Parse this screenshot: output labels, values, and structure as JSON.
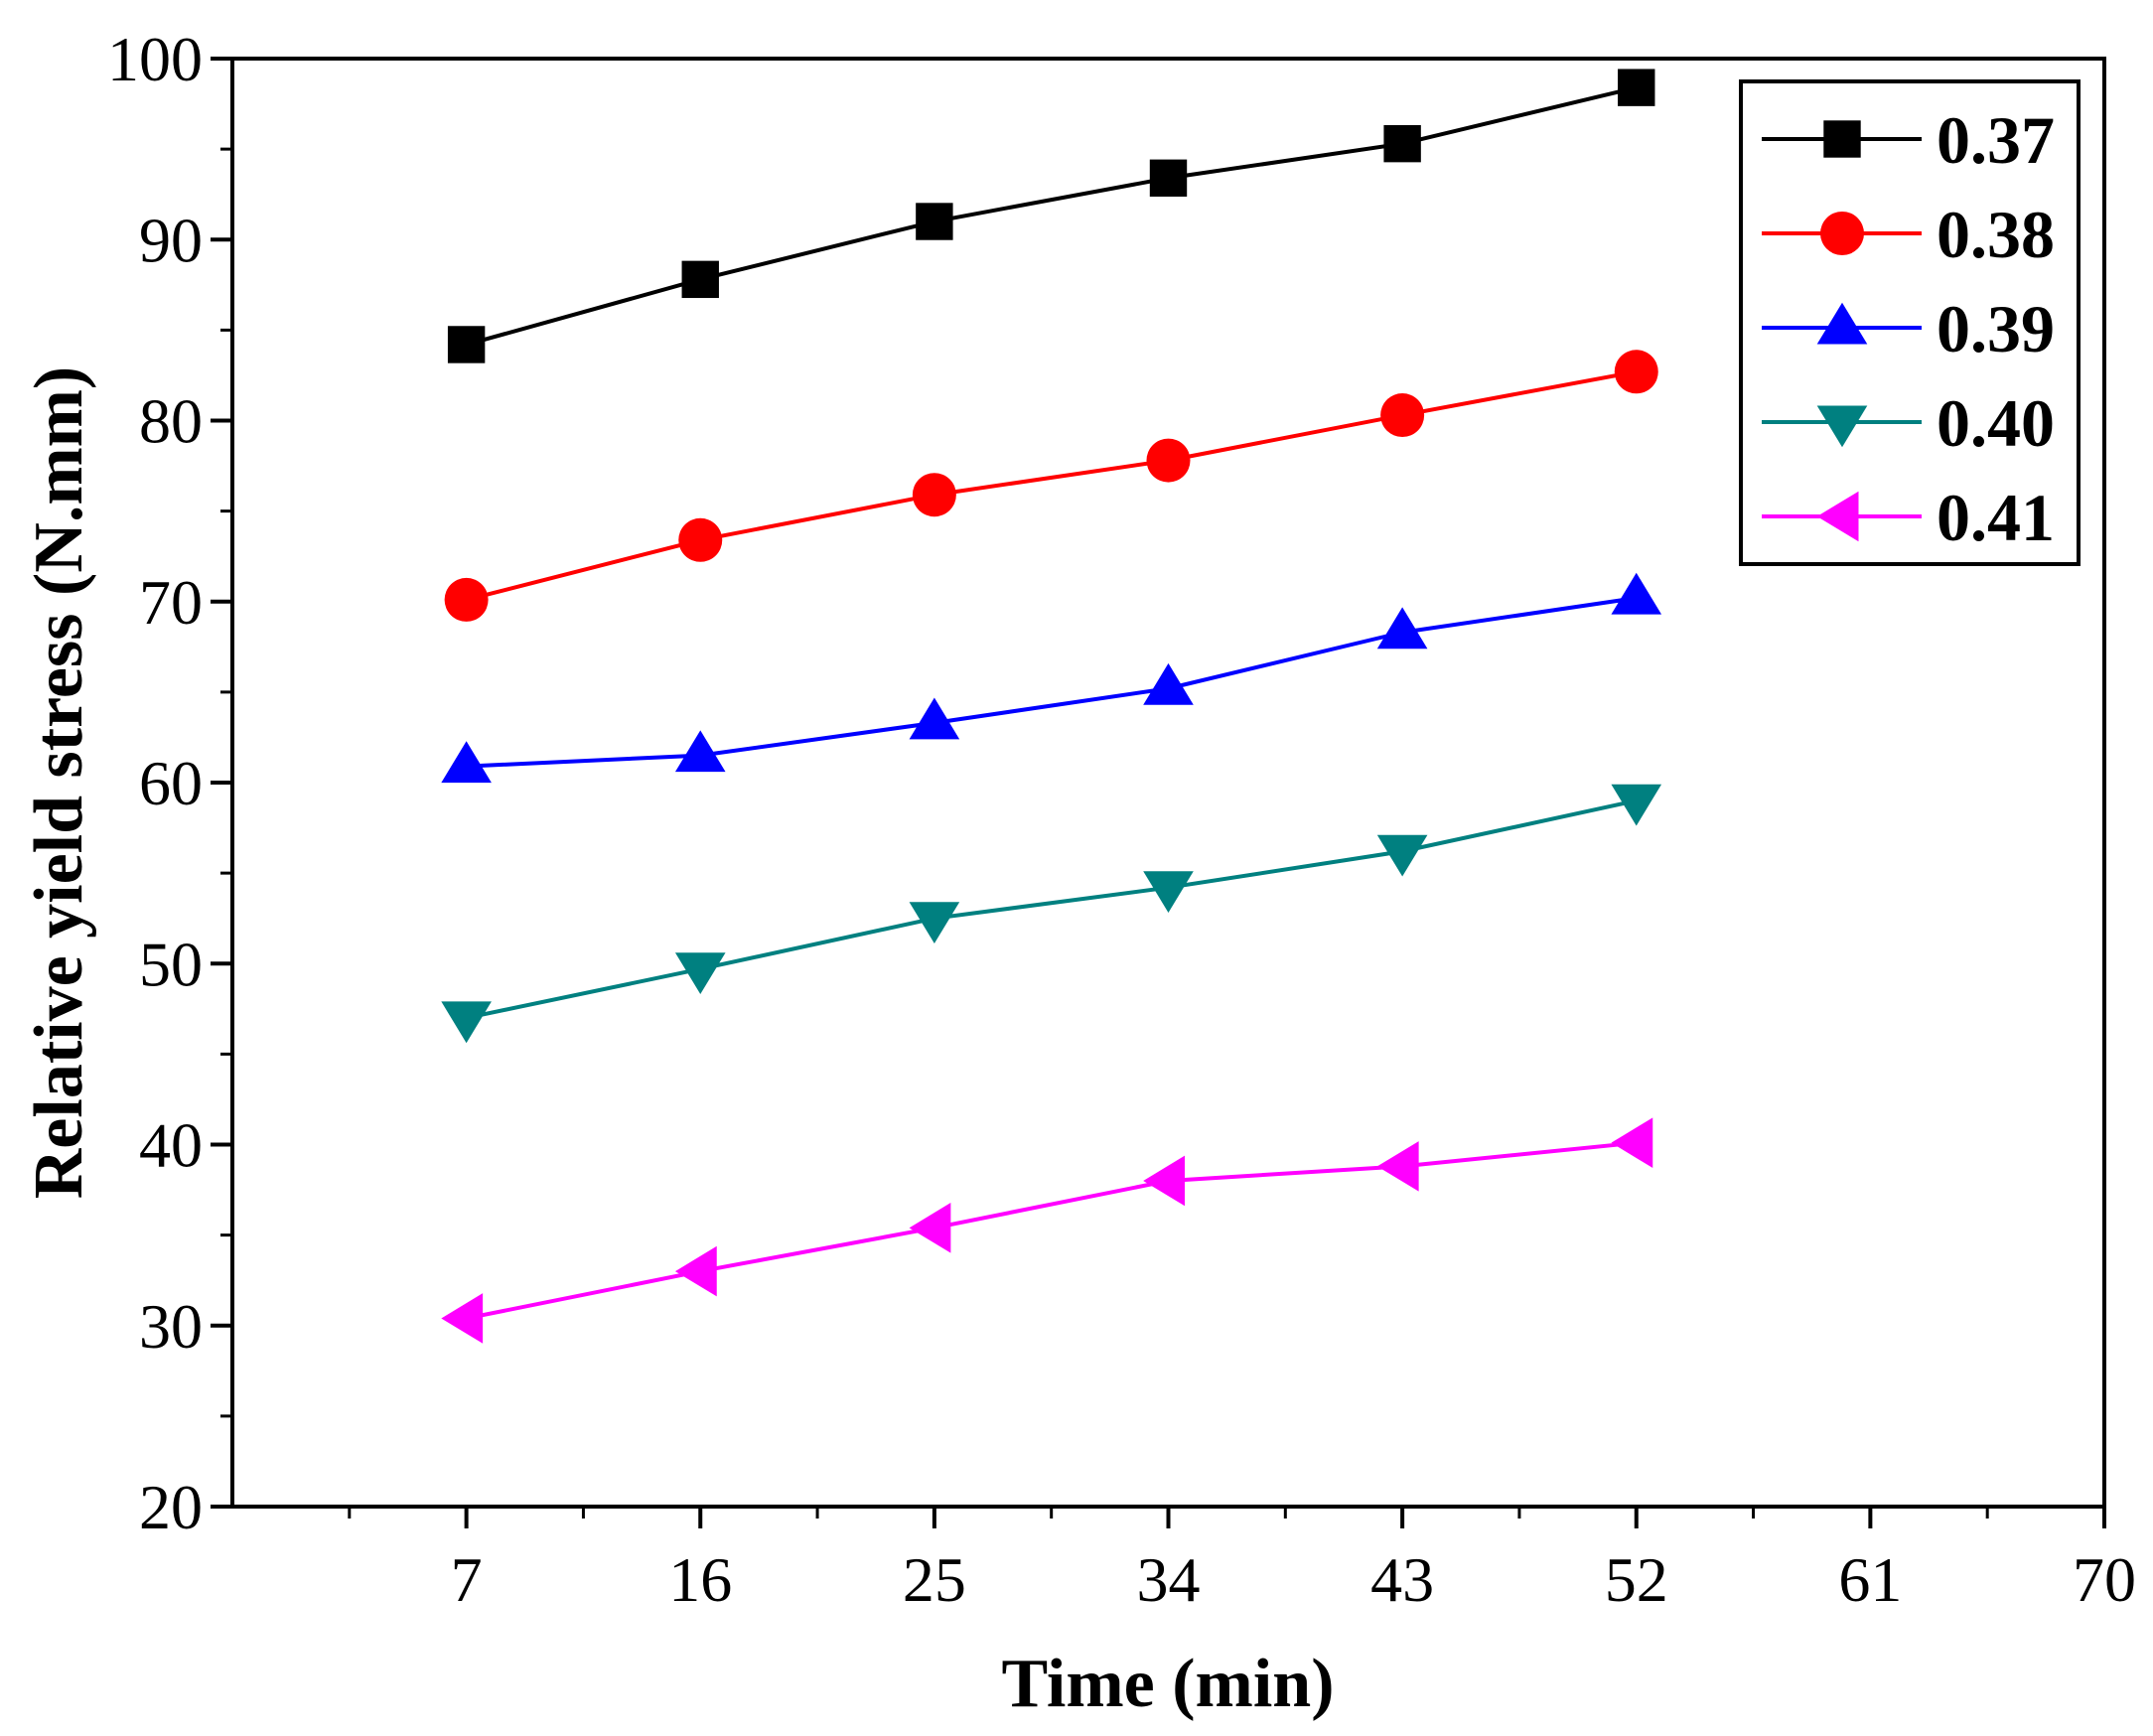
{
  "chart_data": {
    "type": "line",
    "title": "",
    "xlabel": "Time (min)",
    "ylabel": "Relative yield stress (N.mm)",
    "xlim": [
      -2,
      70
    ],
    "ylim": [
      20,
      100
    ],
    "xticks": [
      7,
      16,
      25,
      34,
      43,
      52,
      61,
      70
    ],
    "xticks_minor": [
      2.5,
      11.5,
      20.5,
      29.5,
      38.5,
      47.5,
      56.5,
      65.5
    ],
    "yticks": [
      20,
      30,
      40,
      50,
      60,
      70,
      80,
      90,
      100
    ],
    "yticks_minor": [
      25,
      35,
      45,
      55,
      65,
      75,
      85,
      95
    ],
    "xtick_labels": [
      "7",
      "16",
      "25",
      "34",
      "43",
      "52",
      "61",
      "70"
    ],
    "ytick_labels": [
      "20",
      "30",
      "40",
      "50",
      "60",
      "70",
      "80",
      "90",
      "100"
    ],
    "grid": false,
    "legend_position": "top-right",
    "x": [
      7,
      16,
      25,
      34,
      43,
      52
    ],
    "series": [
      {
        "name": "0.37",
        "color": "#000000",
        "marker": "square",
        "values": [
          84.2,
          87.8,
          91.0,
          93.4,
          95.3,
          98.4
        ]
      },
      {
        "name": "0.38",
        "color": "#ff0000",
        "marker": "circle",
        "values": [
          70.1,
          73.4,
          75.9,
          77.8,
          80.3,
          82.7
        ]
      },
      {
        "name": "0.39",
        "color": "#0000ff",
        "marker": "triangle-up",
        "values": [
          60.9,
          61.5,
          63.3,
          65.2,
          68.3,
          70.2
        ]
      },
      {
        "name": "0.40",
        "color": "#008080",
        "marker": "triangle-down",
        "values": [
          47.0,
          49.7,
          52.5,
          54.2,
          56.2,
          59.0
        ]
      },
      {
        "name": "0.41",
        "color": "#ff00ff",
        "marker": "triangle-left",
        "values": [
          30.4,
          33.0,
          35.4,
          38.0,
          38.8,
          40.1
        ]
      }
    ]
  }
}
